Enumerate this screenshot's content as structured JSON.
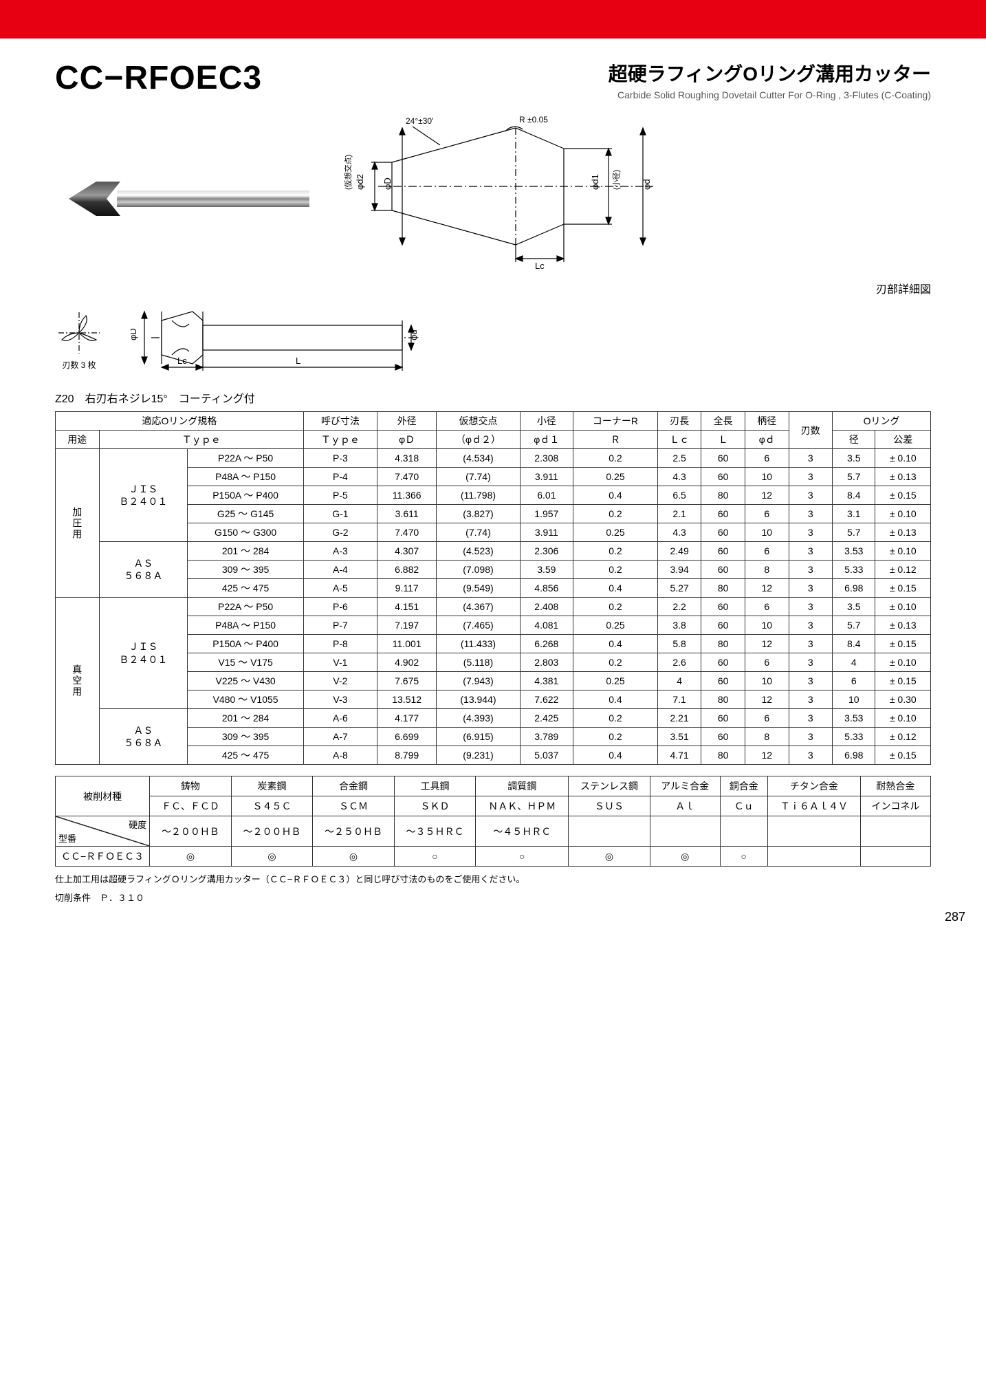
{
  "header": {
    "product_code": "CC−RFOEC3",
    "title_jp": "超硬ラフィングOリング溝用カッター",
    "title_en": "Carbide Solid Roughing Dovetail Cutter For O-Ring , 3-Flutes (C-Coating)"
  },
  "diagram": {
    "angle_label": "24°±30'",
    "r_label": "R ±0.05",
    "phi_d1": "φd1",
    "phi_d1_sub": "(小径)",
    "phi_d2": "φd2",
    "phi_d2_sub": "(仮想交点)",
    "phi_D": "φD",
    "phi_d": "φd",
    "L": "L",
    "Lc": "Lc",
    "detail_label": "刃部詳細図",
    "flutes_label": "刃数 3 枚"
  },
  "spec_note": "Z20　右刃右ネジレ15°　コーティング付",
  "spec_headers": {
    "group1": "適応Oリング規格",
    "nominal": "呼び寸法",
    "od": "外径",
    "virtual": "仮想交点",
    "minor": "小径",
    "corner": "コーナーR",
    "flute_len": "刃長",
    "total_len": "全長",
    "shank": "柄径",
    "flutes": "刃数",
    "oring": "Oリング",
    "use": "用途",
    "type": "Ｔｙｐｅ",
    "phiD": "φＤ",
    "phid2": "（φｄ２）",
    "phid1": "φｄ１",
    "R": "Ｒ",
    "Lc": "Ｌｃ",
    "L": "Ｌ",
    "phid": "φｄ",
    "dia": "径",
    "tol": "公差"
  },
  "spec_groups": [
    {
      "use": "加圧用",
      "subgroups": [
        {
          "std": "ＪＩＳ\nＢ２４０１",
          "rows": [
            {
              "type": "P22A ～ P50",
              "code": "P-3",
              "phiD": "4.318",
              "phid2": "(4.534)",
              "phid1": "2.308",
              "R": "0.2",
              "Lc": "2.5",
              "L": "60",
              "phid": "6",
              "flutes": "3",
              "dia": "3.5",
              "tol": "± 0.10"
            },
            {
              "type": "P48A ～ P150",
              "code": "P-4",
              "phiD": "7.470",
              "phid2": "(7.74)",
              "phid1": "3.911",
              "R": "0.25",
              "Lc": "4.3",
              "L": "60",
              "phid": "10",
              "flutes": "3",
              "dia": "5.7",
              "tol": "± 0.13"
            },
            {
              "type": "P150A ～ P400",
              "code": "P-5",
              "phiD": "11.366",
              "phid2": "(11.798)",
              "phid1": "6.01",
              "R": "0.4",
              "Lc": "6.5",
              "L": "80",
              "phid": "12",
              "flutes": "3",
              "dia": "8.4",
              "tol": "± 0.15"
            },
            {
              "type": "G25 ～ G145",
              "code": "G-1",
              "phiD": "3.611",
              "phid2": "(3.827)",
              "phid1": "1.957",
              "R": "0.2",
              "Lc": "2.1",
              "L": "60",
              "phid": "6",
              "flutes": "3",
              "dia": "3.1",
              "tol": "± 0.10"
            },
            {
              "type": "G150 ～ G300",
              "code": "G-2",
              "phiD": "7.470",
              "phid2": "(7.74)",
              "phid1": "3.911",
              "R": "0.25",
              "Lc": "4.3",
              "L": "60",
              "phid": "10",
              "flutes": "3",
              "dia": "5.7",
              "tol": "± 0.13"
            }
          ]
        },
        {
          "std": "ＡＳ\n５６８Ａ",
          "rows": [
            {
              "type": "201 ～ 284",
              "code": "A-3",
              "phiD": "4.307",
              "phid2": "(4.523)",
              "phid1": "2.306",
              "R": "0.2",
              "Lc": "2.49",
              "L": "60",
              "phid": "6",
              "flutes": "3",
              "dia": "3.53",
              "tol": "± 0.10"
            },
            {
              "type": "309 ～ 395",
              "code": "A-4",
              "phiD": "6.882",
              "phid2": "(7.098)",
              "phid1": "3.59",
              "R": "0.2",
              "Lc": "3.94",
              "L": "60",
              "phid": "8",
              "flutes": "3",
              "dia": "5.33",
              "tol": "± 0.12"
            },
            {
              "type": "425 ～ 475",
              "code": "A-5",
              "phiD": "9.117",
              "phid2": "(9.549)",
              "phid1": "4.856",
              "R": "0.4",
              "Lc": "5.27",
              "L": "80",
              "phid": "12",
              "flutes": "3",
              "dia": "6.98",
              "tol": "± 0.15"
            }
          ]
        }
      ]
    },
    {
      "use": "真空用",
      "subgroups": [
        {
          "std": "ＪＩＳ\nＢ２４０１",
          "rows": [
            {
              "type": "P22A ～ P50",
              "code": "P-6",
              "phiD": "4.151",
              "phid2": "(4.367)",
              "phid1": "2.408",
              "R": "0.2",
              "Lc": "2.2",
              "L": "60",
              "phid": "6",
              "flutes": "3",
              "dia": "3.5",
              "tol": "± 0.10"
            },
            {
              "type": "P48A ～ P150",
              "code": "P-7",
              "phiD": "7.197",
              "phid2": "(7.465)",
              "phid1": "4.081",
              "R": "0.25",
              "Lc": "3.8",
              "L": "60",
              "phid": "10",
              "flutes": "3",
              "dia": "5.7",
              "tol": "± 0.13"
            },
            {
              "type": "P150A ～ P400",
              "code": "P-8",
              "phiD": "11.001",
              "phid2": "(11.433)",
              "phid1": "6.268",
              "R": "0.4",
              "Lc": "5.8",
              "L": "80",
              "phid": "12",
              "flutes": "3",
              "dia": "8.4",
              "tol": "± 0.15"
            },
            {
              "type": "V15 ～ V175",
              "code": "V-1",
              "phiD": "4.902",
              "phid2": "(5.118)",
              "phid1": "2.803",
              "R": "0.2",
              "Lc": "2.6",
              "L": "60",
              "phid": "6",
              "flutes": "3",
              "dia": "4",
              "tol": "± 0.10"
            },
            {
              "type": "V225 ～ V430",
              "code": "V-2",
              "phiD": "7.675",
              "phid2": "(7.943)",
              "phid1": "4.381",
              "R": "0.25",
              "Lc": "4",
              "L": "60",
              "phid": "10",
              "flutes": "3",
              "dia": "6",
              "tol": "± 0.15"
            },
            {
              "type": "V480 ～ V1055",
              "code": "V-3",
              "phiD": "13.512",
              "phid2": "(13.944)",
              "phid1": "7.622",
              "R": "0.4",
              "Lc": "7.1",
              "L": "80",
              "phid": "12",
              "flutes": "3",
              "dia": "10",
              "tol": "± 0.30"
            }
          ]
        },
        {
          "std": "ＡＳ\n５６８Ａ",
          "rows": [
            {
              "type": "201 ～ 284",
              "code": "A-6",
              "phiD": "4.177",
              "phid2": "(4.393)",
              "phid1": "2.425",
              "R": "0.2",
              "Lc": "2.21",
              "L": "60",
              "phid": "6",
              "flutes": "3",
              "dia": "3.53",
              "tol": "± 0.10"
            },
            {
              "type": "309 ～ 395",
              "code": "A-7",
              "phiD": "6.699",
              "phid2": "(6.915)",
              "phid1": "3.789",
              "R": "0.2",
              "Lc": "3.51",
              "L": "60",
              "phid": "8",
              "flutes": "3",
              "dia": "5.33",
              "tol": "± 0.12"
            },
            {
              "type": "425 ～ 475",
              "code": "A-8",
              "phiD": "8.799",
              "phid2": "(9.231)",
              "phid1": "5.037",
              "R": "0.4",
              "Lc": "4.71",
              "L": "80",
              "phid": "12",
              "flutes": "3",
              "dia": "6.98",
              "tol": "± 0.15"
            }
          ]
        }
      ]
    }
  ],
  "material": {
    "label": "被削材種",
    "hardness_label": "硬度",
    "model_label": "型番",
    "model": "ＣＣ−ＲＦＯＥＣ３",
    "cols": [
      {
        "jp": "鋳物",
        "en": "ＦＣ、ＦＣＤ",
        "hard": "～２００ＨＢ",
        "mark": "◎"
      },
      {
        "jp": "炭素鋼",
        "en": "Ｓ４５Ｃ",
        "hard": "～２００ＨＢ",
        "mark": "◎"
      },
      {
        "jp": "合金鋼",
        "en": "ＳＣＭ",
        "hard": "～２５０ＨＢ",
        "mark": "◎"
      },
      {
        "jp": "工具鋼",
        "en": "ＳＫＤ",
        "hard": "～３５ＨＲＣ",
        "mark": "○"
      },
      {
        "jp": "調質鋼",
        "en": "ＮＡＫ、ＨＰＭ",
        "hard": "～４５ＨＲＣ",
        "mark": "○"
      },
      {
        "jp": "ステンレス鋼",
        "en": "ＳＵＳ",
        "hard": "",
        "mark": "◎"
      },
      {
        "jp": "アルミ合金",
        "en": "Ａｌ",
        "hard": "",
        "mark": "◎"
      },
      {
        "jp": "銅合金",
        "en": "Ｃｕ",
        "hard": "",
        "mark": "○"
      },
      {
        "jp": "チタン合金",
        "en": "Ｔｉ６Ａｌ４Ｖ",
        "hard": "",
        "mark": ""
      },
      {
        "jp": "耐熱合金",
        "en": "インコネル",
        "hard": "",
        "mark": ""
      }
    ]
  },
  "footnotes": {
    "note1": "仕上加工用は超硬ラフィングＯリング溝用カッター（ＣＣ−ＲＦＯＥＣ３）と同じ呼び寸法のものをご使用ください。",
    "note2": "切削条件　Ｐ．３１０"
  },
  "page_num": "287",
  "colors": {
    "red": "#e60012",
    "black": "#000000",
    "gray": "#888888"
  }
}
